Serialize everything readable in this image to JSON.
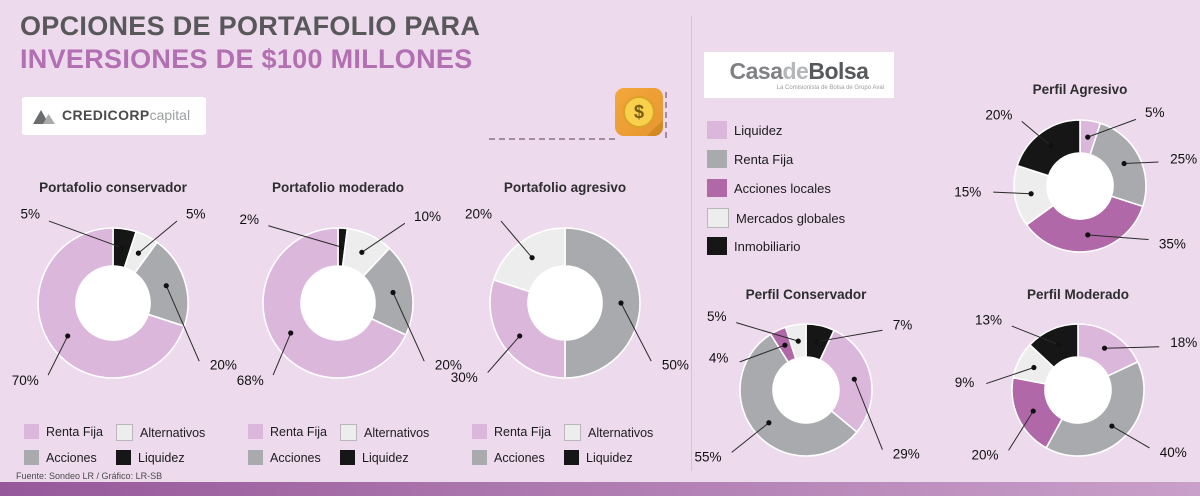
{
  "header": {
    "title_line1": "OPCIONES DE PORTAFOLIO PARA",
    "title_line2": "INVERSIONES DE $100 MILLONES"
  },
  "logos": {
    "credicorp": {
      "part1": "CREDICORP",
      "part2": "capital"
    },
    "casadebolsa": {
      "part1": "Casa",
      "part2": "de",
      "part3": "Bolsa",
      "subtitle": "La Comisionista de Bolsa de Grupo Aval"
    }
  },
  "icons": {
    "coin_symbol": "$"
  },
  "palette": {
    "background": "#eddaed",
    "title_gray": "#58585a",
    "title_accent": "#b26fb2",
    "pink": "#dcb7dc",
    "gray": "#a8aaad",
    "lightgray": "#ededee",
    "black": "#161616",
    "purple": "#b168a8",
    "bar_left": "#96589a",
    "bar_right": "#c9a0c9",
    "coin_orange": "#f3a73c",
    "coin_gold": "#f9d04b"
  },
  "left_legend": {
    "items": [
      {
        "label": "Renta Fija",
        "color": "pink"
      },
      {
        "label": "Alternativos",
        "color": "lightgray"
      },
      {
        "label": "Acciones",
        "color": "gray"
      },
      {
        "label": "Liquidez",
        "color": "black"
      }
    ]
  },
  "right_legend": {
    "items": [
      {
        "label": "Liquidez",
        "color": "pink"
      },
      {
        "label": "Renta Fija",
        "color": "gray"
      },
      {
        "label": "Acciones locales",
        "color": "purple"
      },
      {
        "label": "Mercados globales",
        "color": "lightgray"
      },
      {
        "label": "Inmobiliario",
        "color": "black"
      }
    ]
  },
  "chart_data": [
    {
      "id": "portafolio-conservador",
      "type": "pie",
      "unit": "%",
      "title": "Portafolio conservador",
      "legend_position": "bottom",
      "segments": [
        {
          "name": "Liquidez",
          "value": 5,
          "color": "black",
          "label_angle": 322
        },
        {
          "name": "Alternativos",
          "value": 5,
          "color": "lightgray",
          "label_angle": 38
        },
        {
          "name": "Acciones",
          "value": 20,
          "color": "gray",
          "label_angle": 124
        },
        {
          "name": "Renta Fija",
          "value": 70,
          "color": "pink",
          "label_angle": 222,
          "label_r": 105
        }
      ]
    },
    {
      "id": "portafolio-moderado",
      "type": "pie",
      "unit": "%",
      "title": "Portafolio moderado",
      "legend_position": "bottom",
      "segments": [
        {
          "name": "Liquidez",
          "value": 2,
          "color": "black",
          "label_angle": 318
        },
        {
          "name": "Alternativos",
          "value": 10,
          "color": "lightgray",
          "label_angle": 40
        },
        {
          "name": "Acciones",
          "value": 20,
          "color": "gray",
          "label_angle": 124
        },
        {
          "name": "Renta Fija",
          "value": 68,
          "color": "pink",
          "label_angle": 222,
          "label_r": 105
        }
      ]
    },
    {
      "id": "portafolio-agresivo",
      "type": "pie",
      "unit": "%",
      "title": "Portafolio agresivo",
      "legend_position": "bottom",
      "segments": [
        {
          "name": "Acciones",
          "value": 50,
          "color": "gray",
          "label_angle": 124
        },
        {
          "name": "Renta Fija",
          "value": 30,
          "color": "pink",
          "label_angle": 228
        },
        {
          "name": "Alternativos",
          "value": 20,
          "color": "lightgray",
          "label_angle": 322
        }
      ]
    },
    {
      "id": "perfil-agresivo",
      "type": "pie",
      "unit": "%",
      "title": "Perfil Agresivo",
      "legend_position": "left-column",
      "segments": [
        {
          "name": "Liquidez",
          "value": 5,
          "color": "pink",
          "label_angle": 40
        },
        {
          "name": "Renta Fija",
          "value": 25,
          "color": "gray",
          "label_angle": 73,
          "label_r": 90
        },
        {
          "name": "Acciones locales",
          "value": 35,
          "color": "purple",
          "label_angle": 128
        },
        {
          "name": "Mercados globales",
          "value": 15,
          "color": "lightgray",
          "label_angle": 266
        },
        {
          "name": "Inmobiliario",
          "value": 20,
          "color": "black",
          "label_angle": 318
        }
      ]
    },
    {
      "id": "perfil-conservador",
      "type": "pie",
      "unit": "%",
      "title": "Perfil Conservador",
      "legend_position": "left-column",
      "segments": [
        {
          "name": "Inmobiliario",
          "value": 7,
          "color": "black",
          "label_angle": 52
        },
        {
          "name": "Liquidez",
          "value": 29,
          "color": "pink",
          "label_angle": 128
        },
        {
          "name": "Renta Fija",
          "value": 55,
          "color": "gray",
          "label_angle": 230
        },
        {
          "name": "Acciones locales",
          "value": 4,
          "color": "purple",
          "label_angle": 293,
          "label_r": 80
        },
        {
          "name": "Mercados globales",
          "value": 5,
          "color": "lightgray",
          "label_angle": 314
        }
      ]
    },
    {
      "id": "perfil-moderado",
      "type": "pie",
      "unit": "%",
      "title": "Perfil Moderado",
      "legend_position": "left-column",
      "segments": [
        {
          "name": "Liquidez",
          "value": 18,
          "color": "pink",
          "label_angle": 62
        },
        {
          "name": "Renta Fija",
          "value": 40,
          "color": "gray",
          "label_angle": 129
        },
        {
          "name": "Acciones locales",
          "value": 20,
          "color": "purple",
          "label_angle": 229
        },
        {
          "name": "Mercados globales",
          "value": 9,
          "color": "lightgray",
          "label_angle": 274
        },
        {
          "name": "Inmobiliario",
          "value": 13,
          "color": "black",
          "label_angle": 314
        }
      ]
    }
  ],
  "footer": {
    "source": "Fuente: Sondeo LR / Gráfico: LR-SB"
  }
}
